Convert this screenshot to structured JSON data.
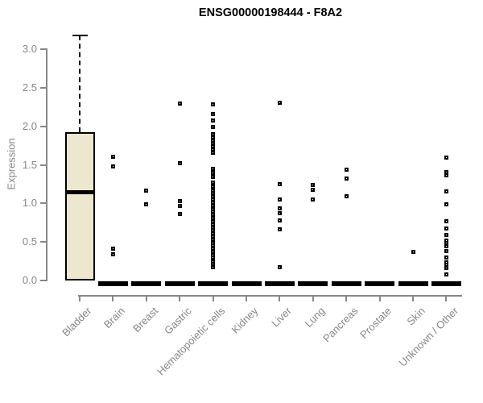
{
  "chart_data": {
    "type": "boxplot",
    "title": "ENSG00000198444 - F8A2",
    "xlabel": "",
    "ylabel": "Expression",
    "ylim": [
      0,
      3.2
    ],
    "yticks": [
      0.0,
      0.5,
      1.0,
      1.5,
      2.0,
      2.5,
      3.0
    ],
    "grid": false,
    "legend": "none",
    "categories": [
      "Bladder",
      "Brain",
      "Breast",
      "Gastric",
      "Hematopoietic cells",
      "Kidney",
      "Liver",
      "Lung",
      "Pancreas",
      "Prostate",
      "Skin",
      "Unknown / Other"
    ],
    "series": [
      {
        "category": "Bladder",
        "q1": 0.0,
        "median": 1.15,
        "q3": 1.92,
        "whisker_low": 0.0,
        "whisker_high": 3.18,
        "outliers": []
      },
      {
        "category": "Brain",
        "q1": 0.0,
        "median": 0.0,
        "q3": 0.0,
        "whisker_low": 0.0,
        "whisker_high": 0.0,
        "outliers": [
          1.61,
          1.48,
          0.41,
          0.34
        ]
      },
      {
        "category": "Breast",
        "q1": 0.0,
        "median": 0.0,
        "q3": 0.0,
        "whisker_low": 0.0,
        "whisker_high": 0.0,
        "outliers": [
          1.17,
          0.99
        ]
      },
      {
        "category": "Gastric",
        "q1": 0.0,
        "median": 0.0,
        "q3": 0.0,
        "whisker_low": 0.0,
        "whisker_high": 0.0,
        "outliers": [
          2.3,
          1.52,
          1.03,
          0.97,
          0.86
        ]
      },
      {
        "category": "Hematopoietic cells",
        "q1": 0.0,
        "median": 0.0,
        "q3": 0.0,
        "whisker_low": 0.0,
        "whisker_high": 0.0,
        "outliers": [
          2.29,
          2.16,
          2.08,
          1.99,
          1.9,
          1.86,
          1.82,
          1.78,
          1.74,
          1.7,
          1.66,
          1.45,
          1.4,
          1.34,
          1.27,
          1.22,
          1.17,
          1.13,
          1.09,
          1.05,
          1.01,
          0.97,
          0.93,
          0.89,
          0.85,
          0.81,
          0.77,
          0.73,
          0.69,
          0.65,
          0.61,
          0.57,
          0.53,
          0.49,
          0.45,
          0.41,
          0.37,
          0.33,
          0.3,
          0.25,
          0.21,
          0.17
        ]
      },
      {
        "category": "Kidney",
        "q1": 0.0,
        "median": 0.0,
        "q3": 0.0,
        "whisker_low": 0.0,
        "whisker_high": 0.0,
        "outliers": []
      },
      {
        "category": "Liver",
        "q1": 0.0,
        "median": 0.0,
        "q3": 0.0,
        "whisker_low": 0.0,
        "whisker_high": 0.0,
        "outliers": [
          2.31,
          1.25,
          1.05,
          0.94,
          0.87,
          0.78,
          0.66,
          0.17
        ]
      },
      {
        "category": "Lung",
        "q1": 0.0,
        "median": 0.0,
        "q3": 0.0,
        "whisker_low": 0.0,
        "whisker_high": 0.0,
        "outliers": [
          1.24,
          1.18,
          1.05
        ]
      },
      {
        "category": "Pancreas",
        "q1": 0.0,
        "median": 0.0,
        "q3": 0.0,
        "whisker_low": 0.0,
        "whisker_high": 0.0,
        "outliers": [
          1.44,
          1.32,
          1.09
        ]
      },
      {
        "category": "Prostate",
        "q1": 0.0,
        "median": 0.0,
        "q3": 0.0,
        "whisker_low": 0.0,
        "whisker_high": 0.0,
        "outliers": []
      },
      {
        "category": "Skin",
        "q1": 0.0,
        "median": 0.0,
        "q3": 0.0,
        "whisker_low": 0.0,
        "whisker_high": 0.0,
        "outliers": [
          0.37
        ]
      },
      {
        "category": "Unknown / Other",
        "q1": 0.0,
        "median": 0.0,
        "q3": 0.0,
        "whisker_low": 0.0,
        "whisker_high": 0.0,
        "outliers": [
          1.6,
          1.41,
          1.37,
          1.16,
          0.99,
          0.77,
          0.67,
          0.59,
          0.52,
          0.49,
          0.44,
          0.38,
          0.3,
          0.24,
          0.2,
          0.16,
          0.08
        ]
      }
    ],
    "colors": {
      "box_fill": "#ECE7CE",
      "box_border": "#000000",
      "median": "#000000",
      "outlier": "#000000",
      "axis": "#878787",
      "title": "#000000",
      "background": "#ffffff"
    }
  }
}
